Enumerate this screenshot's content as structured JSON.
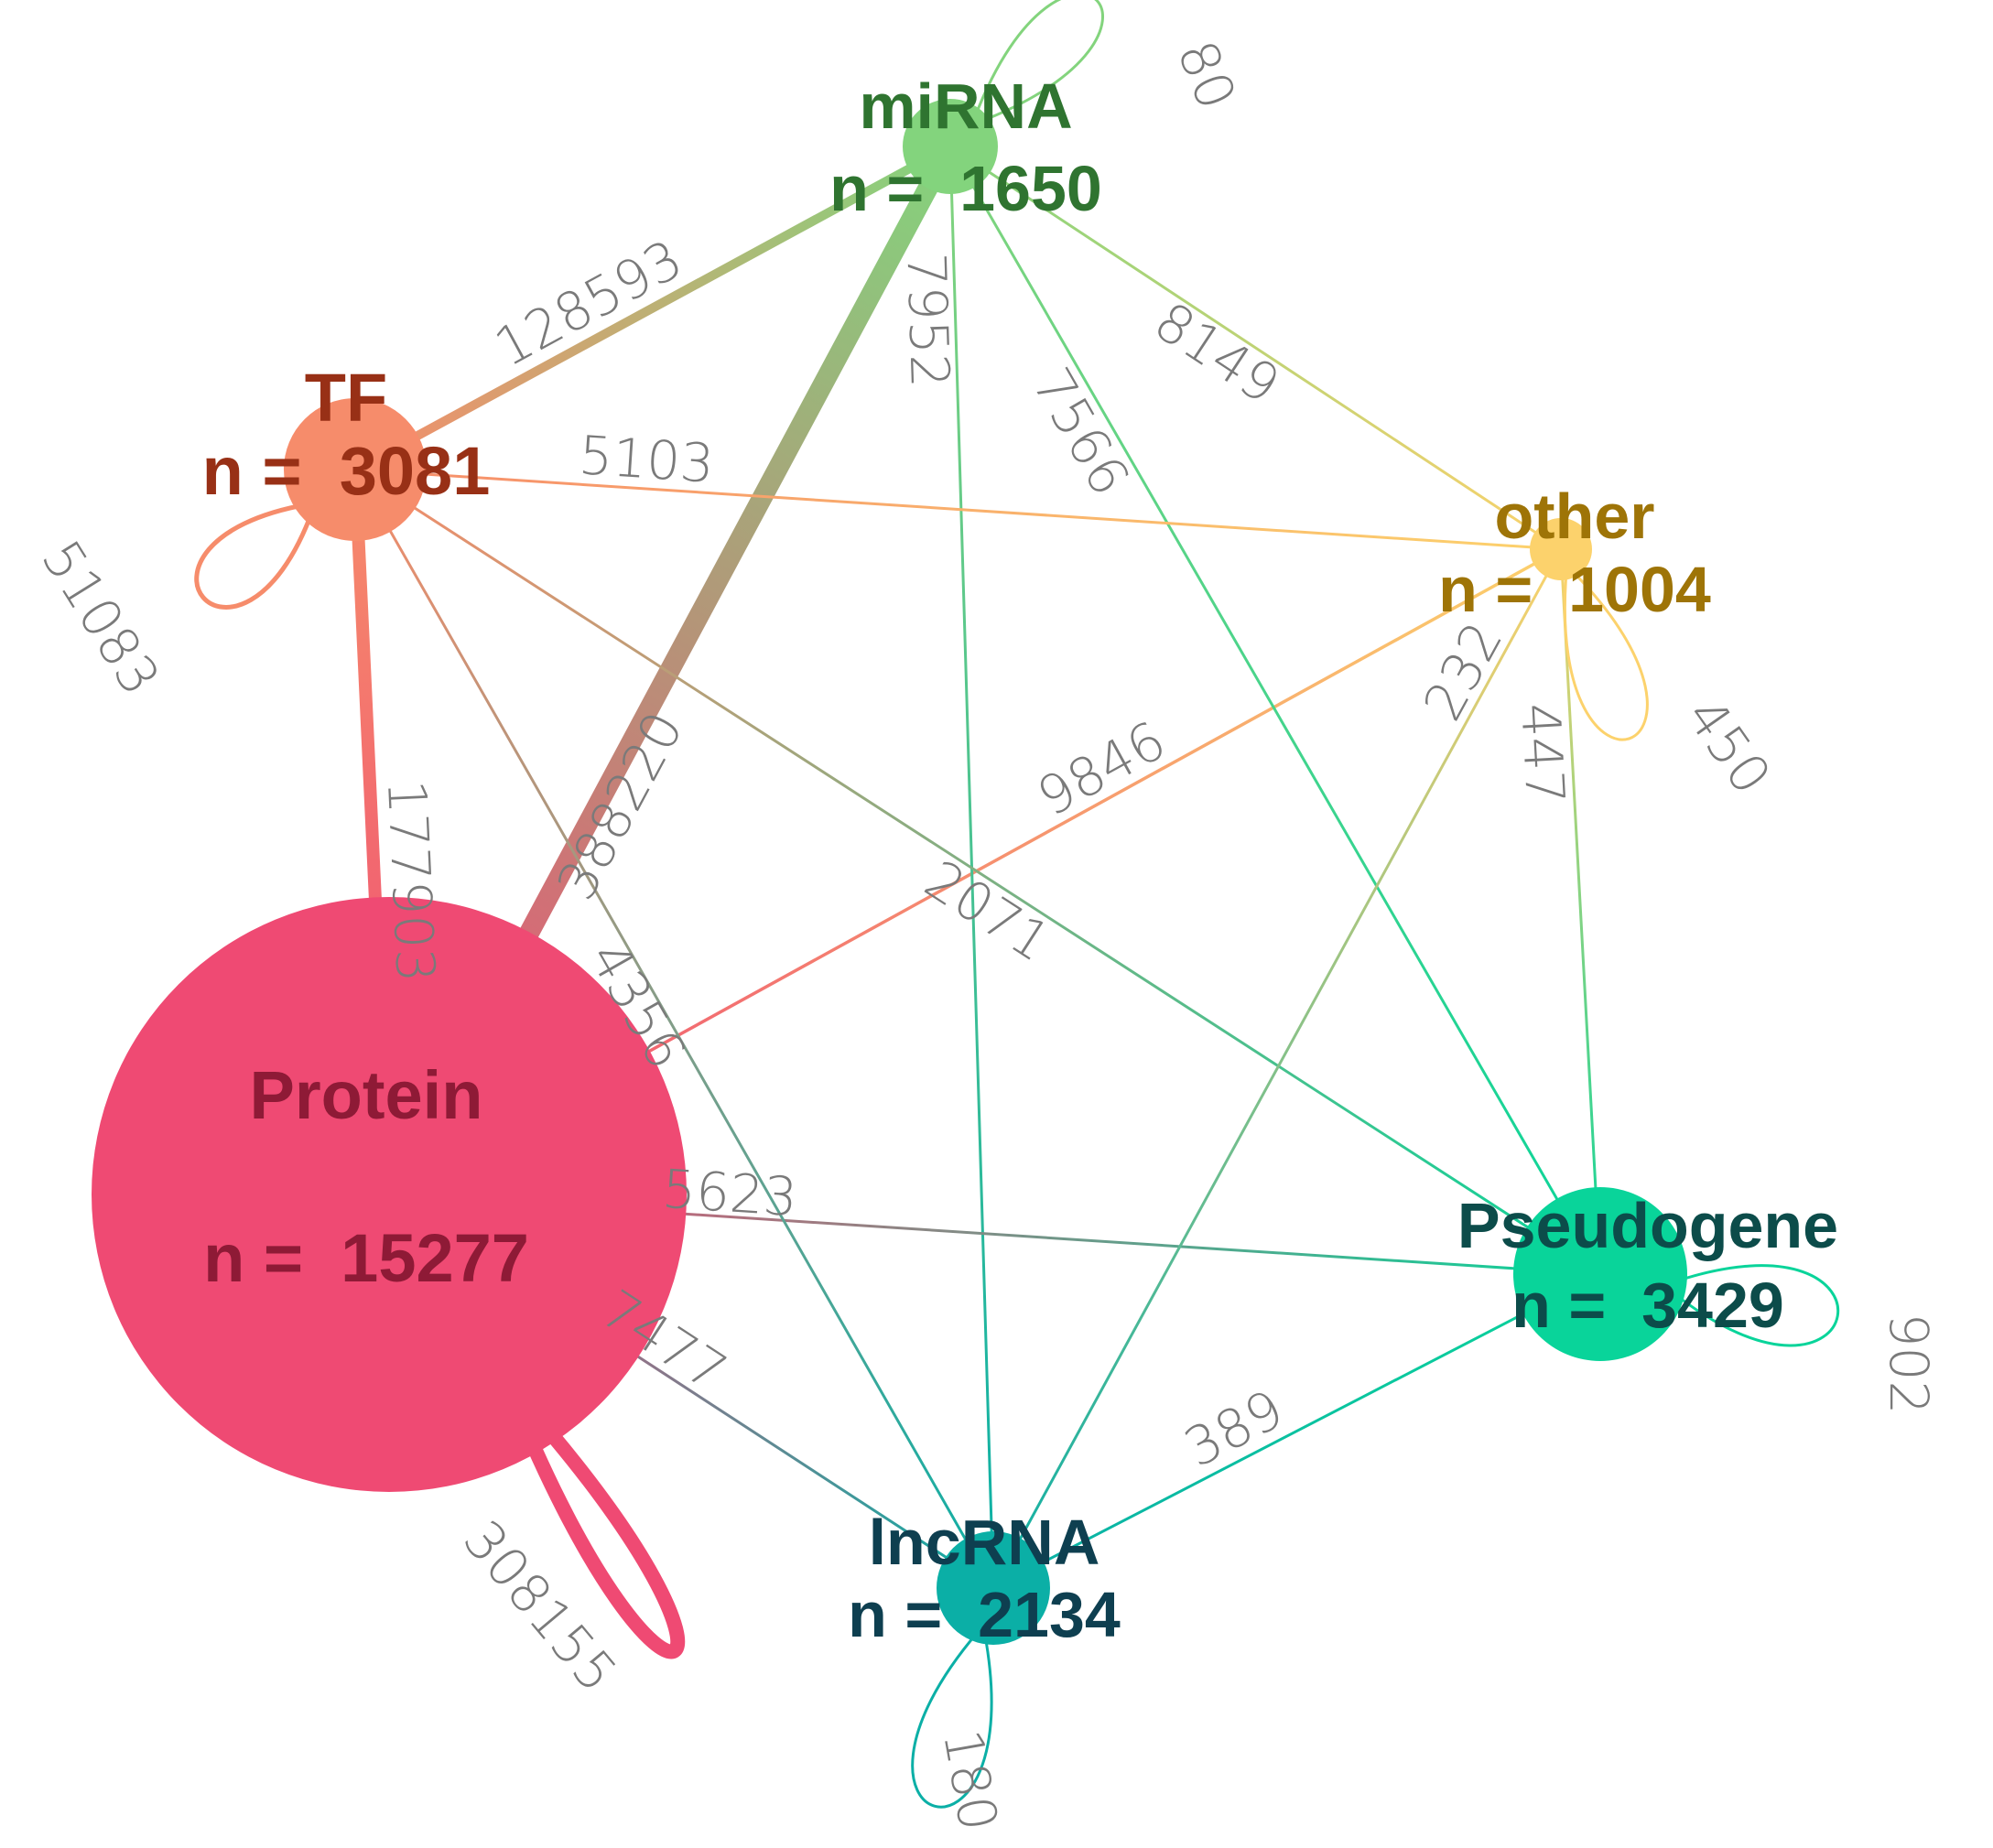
{
  "nodes": [
    {
      "id": "protein",
      "name": "Protein",
      "count_text": "n =  15277",
      "count": 15277,
      "fill": "#ef4a73",
      "label_color": "#8e1a36"
    },
    {
      "id": "tf",
      "name": "TF",
      "count_text": "n =  3081",
      "count": 3081,
      "fill": "#f68c6b",
      "label_color": "#983016"
    },
    {
      "id": "mirna",
      "name": "miRNA",
      "count_text": "n =  1650",
      "count": 1650,
      "fill": "#83d47d",
      "label_color": "#2f7430"
    },
    {
      "id": "other",
      "name": "other",
      "count_text": "n =  1004",
      "count": 1004,
      "fill": "#fcd26c",
      "label_color": "#9e7407"
    },
    {
      "id": "pseudogene",
      "name": "Pseudogene",
      "count_text": "n =  3429",
      "count": 3429,
      "fill": "#09d49a",
      "label_color": "#0c4c4a"
    },
    {
      "id": "lncrna",
      "name": "lncRNA",
      "count_text": "n =  2134",
      "count": 2134,
      "fill": "#0bafa6",
      "label_color": "#0e3f50"
    }
  ],
  "edges": [
    {
      "from": "protein",
      "to": "mirna",
      "label": "388220"
    },
    {
      "from": "protein",
      "to": "tf",
      "label": "177903"
    },
    {
      "from": "tf",
      "to": "mirna",
      "label": "128593"
    },
    {
      "from": "protein",
      "to": "other",
      "label": "9846"
    },
    {
      "from": "mirna",
      "to": "other",
      "label": "8149"
    },
    {
      "from": "mirna",
      "to": "lncrna",
      "label": "7952"
    },
    {
      "from": "mirna",
      "to": "pseudogene",
      "label": "7566"
    },
    {
      "from": "protein",
      "to": "lncrna",
      "label": "7477"
    },
    {
      "from": "protein",
      "to": "pseudogene",
      "label": "5623"
    },
    {
      "from": "tf",
      "to": "other",
      "label": "5103"
    },
    {
      "from": "tf",
      "to": "lncrna",
      "label": "4356"
    },
    {
      "from": "tf",
      "to": "pseudogene",
      "label": "2071"
    },
    {
      "from": "pseudogene",
      "to": "lncrna",
      "label": "389"
    },
    {
      "from": "other",
      "to": "pseudogene",
      "label": "447"
    },
    {
      "from": "other",
      "to": "lncrna",
      "label": "232"
    }
  ],
  "self_loops": [
    {
      "node": "protein",
      "label": "308155"
    },
    {
      "node": "tf",
      "label": "51083"
    },
    {
      "node": "pseudogene",
      "label": "902"
    },
    {
      "node": "other",
      "label": "450"
    },
    {
      "node": "lncrna",
      "label": "180"
    },
    {
      "node": "mirna",
      "label": "80"
    }
  ]
}
